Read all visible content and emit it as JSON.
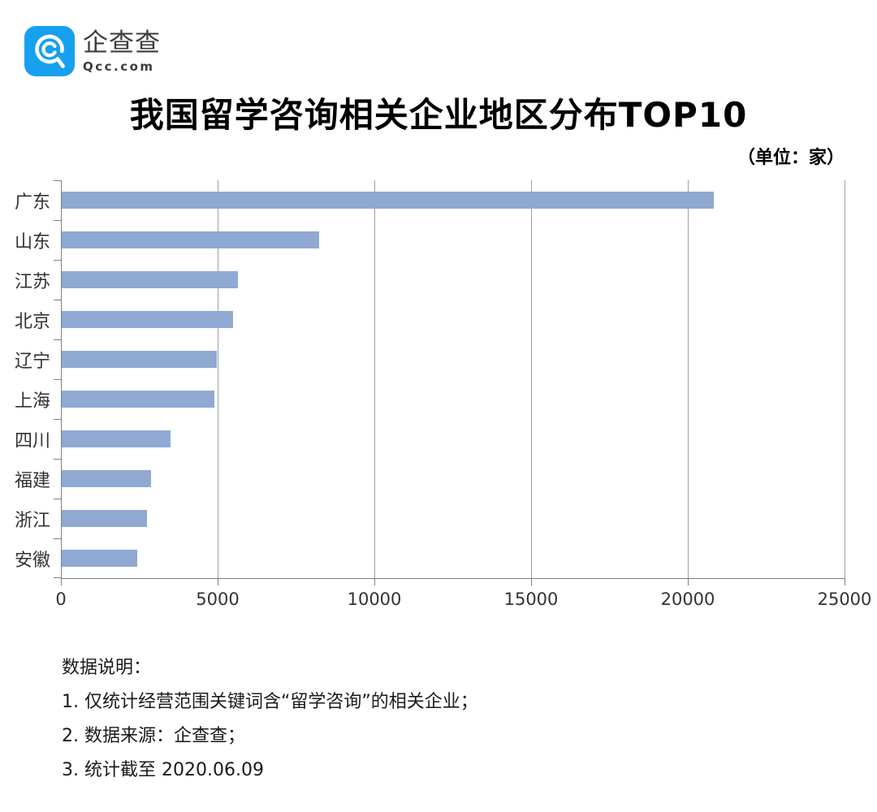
{
  "brand": {
    "name": "企查查",
    "domain": "Qcc.com",
    "logo_color": "#18A0F0"
  },
  "title": "我国留学咨询相关企业地区分布TOP10",
  "unit_label": "（单位：家）",
  "chart_data": {
    "type": "bar",
    "orientation": "horizontal",
    "title": "我国留学咨询相关企业地区分布TOP10",
    "unit": "家",
    "categories": [
      "广东",
      "山东",
      "江苏",
      "北京",
      "辽宁",
      "上海",
      "四川",
      "福建",
      "浙江",
      "安徽"
    ],
    "values": [
      20800,
      8200,
      5610,
      5460,
      4960,
      4860,
      3460,
      2840,
      2710,
      2420
    ],
    "xlabel": "",
    "ylabel": "",
    "xlim": [
      0,
      25000
    ],
    "x_ticks": [
      0,
      5000,
      10000,
      15000,
      20000,
      25000
    ],
    "x_tick_labels": [
      "0",
      "5000",
      "10000",
      "15000",
      "20000",
      "25000"
    ],
    "bar_color": "#8FA9D2",
    "grid": true,
    "legend_position": "none"
  },
  "notes": {
    "heading": "数据说明：",
    "items": [
      "1. 仅统计经营范围关键词含“留学咨询”的相关企业；",
      "2. 数据来源：企查查；",
      "3. 统计截至 2020.06.09"
    ]
  }
}
